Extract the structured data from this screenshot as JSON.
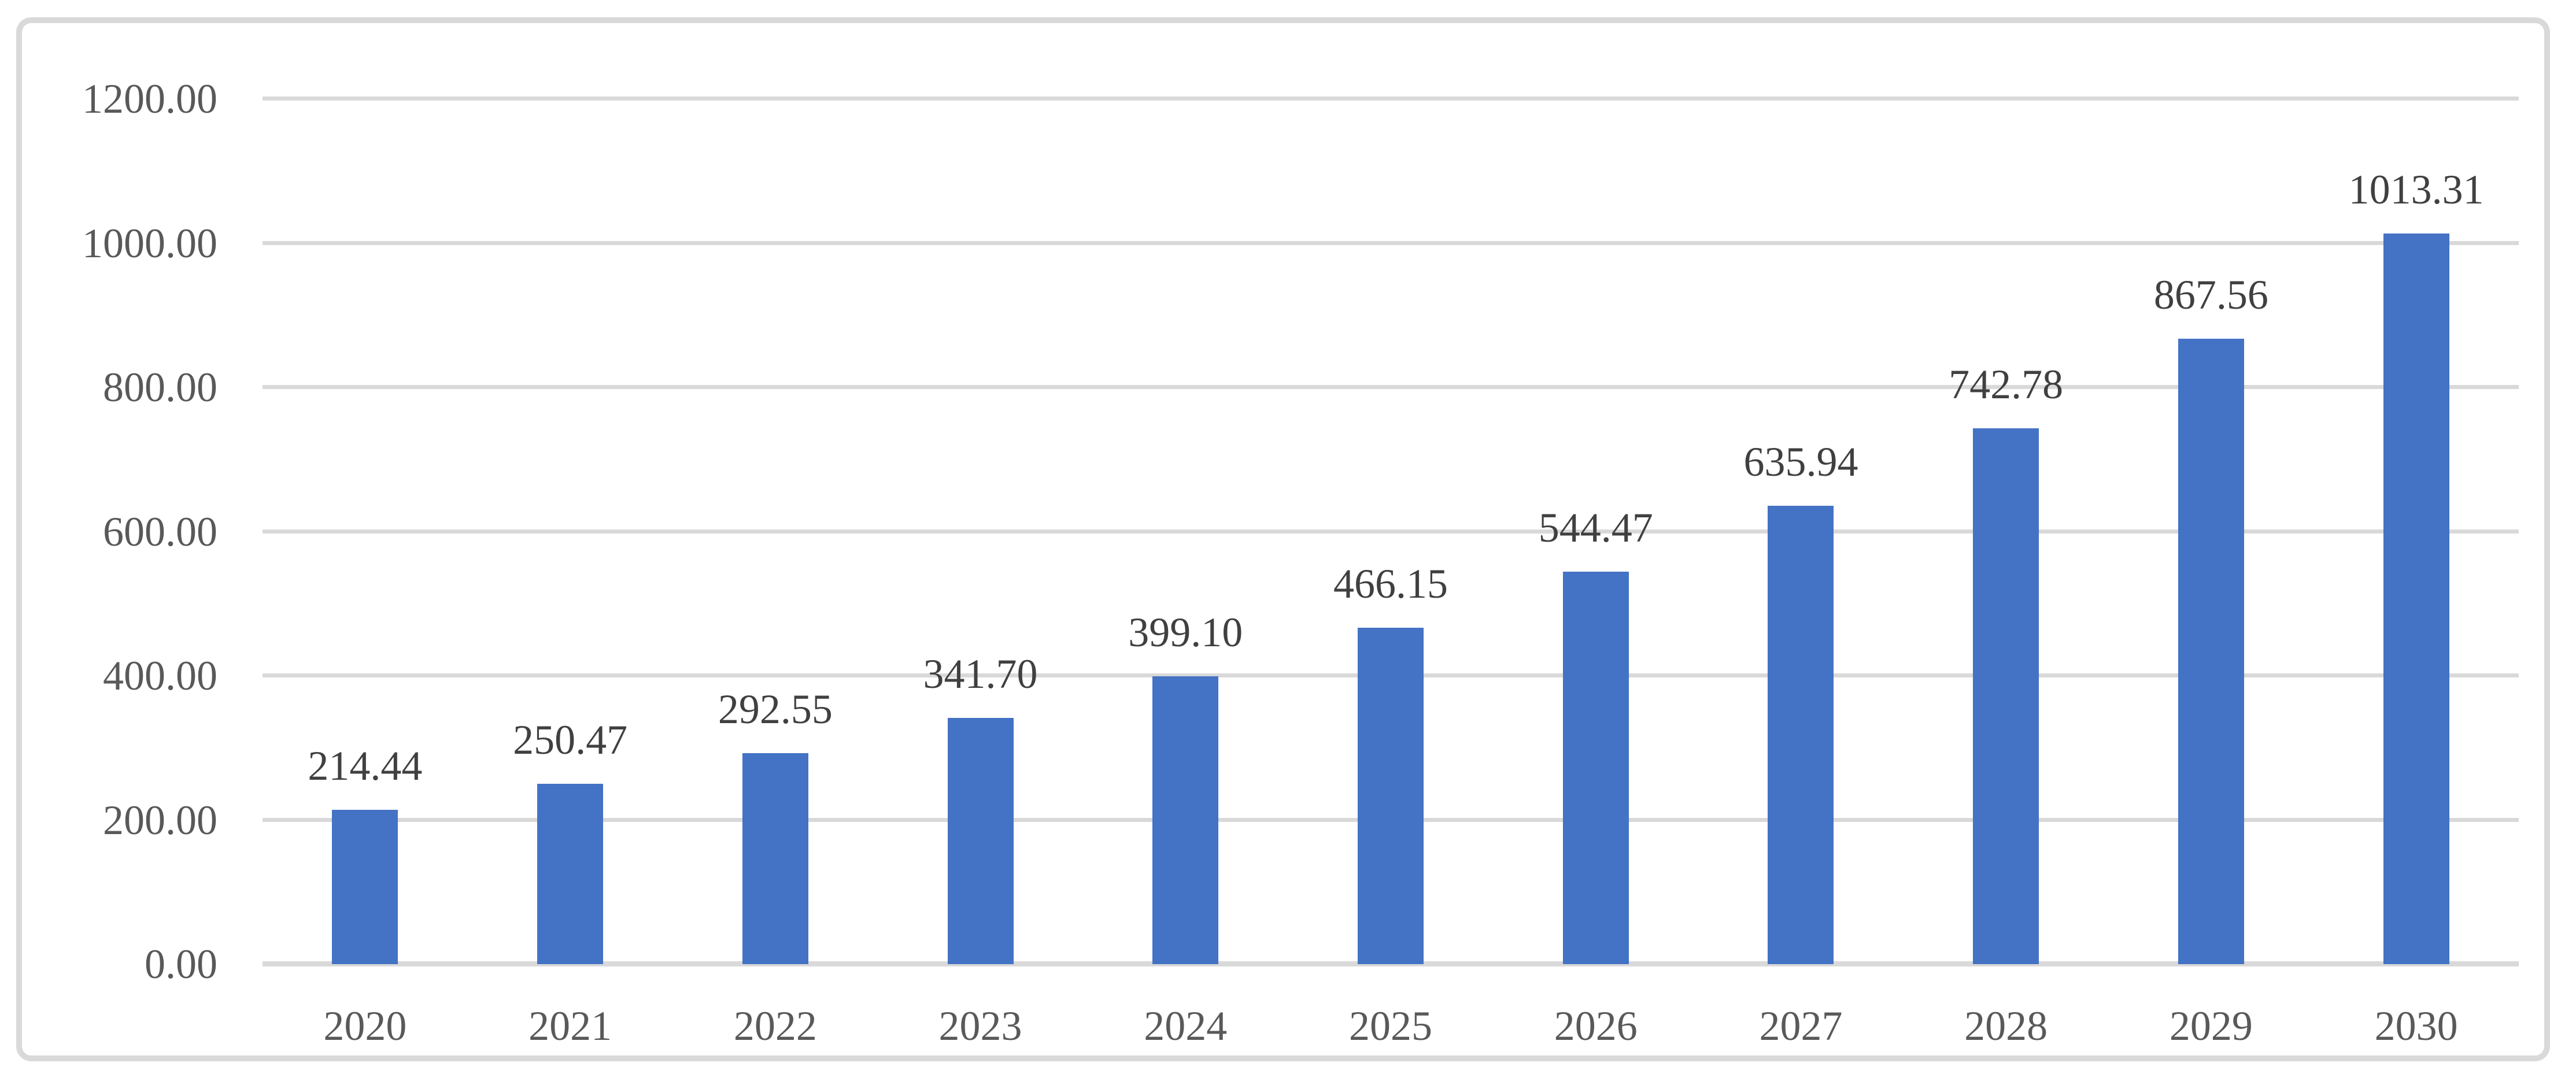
{
  "chart_data": {
    "type": "bar",
    "title": "",
    "xlabel": "",
    "ylabel": "",
    "categories": [
      "2020",
      "2021",
      "2022",
      "2023",
      "2024",
      "2025",
      "2026",
      "2027",
      "2028",
      "2029",
      "2030"
    ],
    "values": [
      214.44,
      250.47,
      292.55,
      341.7,
      399.1,
      466.15,
      544.47,
      635.94,
      742.78,
      867.56,
      1013.31
    ],
    "data_labels": [
      "214.44",
      "250.47",
      "292.55",
      "341.70",
      "399.10",
      "466.15",
      "544.47",
      "635.94",
      "742.78",
      "867.56",
      "1013.31"
    ],
    "y_ticks": [
      {
        "value": 1200,
        "label": "1200.00"
      },
      {
        "value": 1000,
        "label": "1000.00"
      },
      {
        "value": 800,
        "label": "800.00"
      },
      {
        "value": 600,
        "label": "600.00"
      },
      {
        "value": 400,
        "label": "400.00"
      },
      {
        "value": 200,
        "label": "200.00"
      },
      {
        "value": 0,
        "label": "0.00"
      }
    ],
    "ylim": [
      0,
      1200
    ],
    "grid": "horizontal-gridlines",
    "legend": "none",
    "colors": {
      "bar": "#4472C4",
      "gridline": "#D9D9D9",
      "axis_tick_text": "#595959",
      "data_label_text": "#404040",
      "frame_border": "#D9D9D9",
      "background": "#FFFFFF"
    }
  }
}
